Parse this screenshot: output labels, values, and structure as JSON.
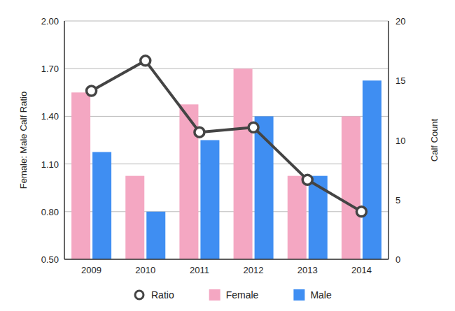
{
  "chart_data": {
    "type": "bar",
    "categories": [
      "2009",
      "2010",
      "2011",
      "2012",
      "2013",
      "2014"
    ],
    "series": [
      {
        "name": "Ratio",
        "type": "line",
        "color": "#444444",
        "marker": "circle",
        "values": [
          1.56,
          1.75,
          1.3,
          1.33,
          1.0,
          0.8
        ]
      },
      {
        "name": "Female",
        "type": "bar",
        "color": "#f4a7c2",
        "axis": "y2",
        "values": [
          14,
          7,
          13,
          16,
          7,
          12
        ]
      },
      {
        "name": "Male",
        "type": "bar",
        "color": "#3f8ef2",
        "axis": "y2",
        "values": [
          9,
          4,
          10,
          12,
          7,
          15
        ]
      }
    ],
    "ylabel": "Female: Male Calf Ratio",
    "y2label": "Calf Count",
    "ylim": [
      0.5,
      2
    ],
    "yticks": [
      {
        "value": 0.5,
        "label": "0.50"
      },
      {
        "value": 0.8,
        "label": "0.80"
      },
      {
        "value": 1.1,
        "label": "1.10"
      },
      {
        "value": 1.4,
        "label": "1.40"
      },
      {
        "value": 1.7,
        "label": "1.70"
      },
      {
        "value": 2,
        "label": "2.00"
      }
    ],
    "y2lim": [
      0,
      20
    ],
    "y2ticks": [
      0,
      5,
      10,
      15,
      20
    ],
    "grid": true,
    "legend": "bottom"
  }
}
